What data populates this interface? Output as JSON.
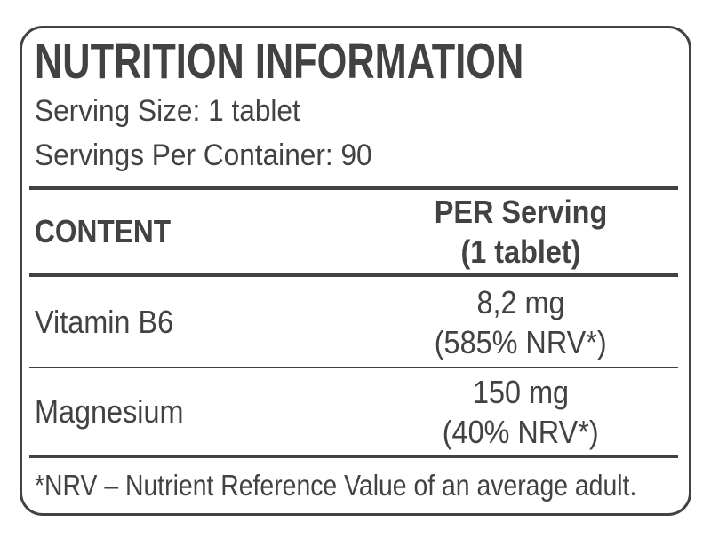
{
  "label": {
    "title": "NUTRITION INFORMATION",
    "serving_size": "Serving Size: 1 tablet",
    "servings_per_container": "Servings Per Container: 90",
    "table": {
      "content_header": "CONTENT",
      "per_serving_header_line1": "PER Serving",
      "per_serving_header_line2": "(1 tablet)",
      "rows": [
        {
          "name": "Vitamin B6",
          "amount": "8,2 mg",
          "nrv": "(585% NRV*)"
        },
        {
          "name": "Magnesium",
          "amount": "150 mg",
          "nrv": "(40% NRV*)"
        }
      ]
    },
    "footnote": "*NRV – Nutrient Reference Value of an average adult.",
    "colors": {
      "text": "#424245",
      "background": "#ffffff"
    }
  }
}
